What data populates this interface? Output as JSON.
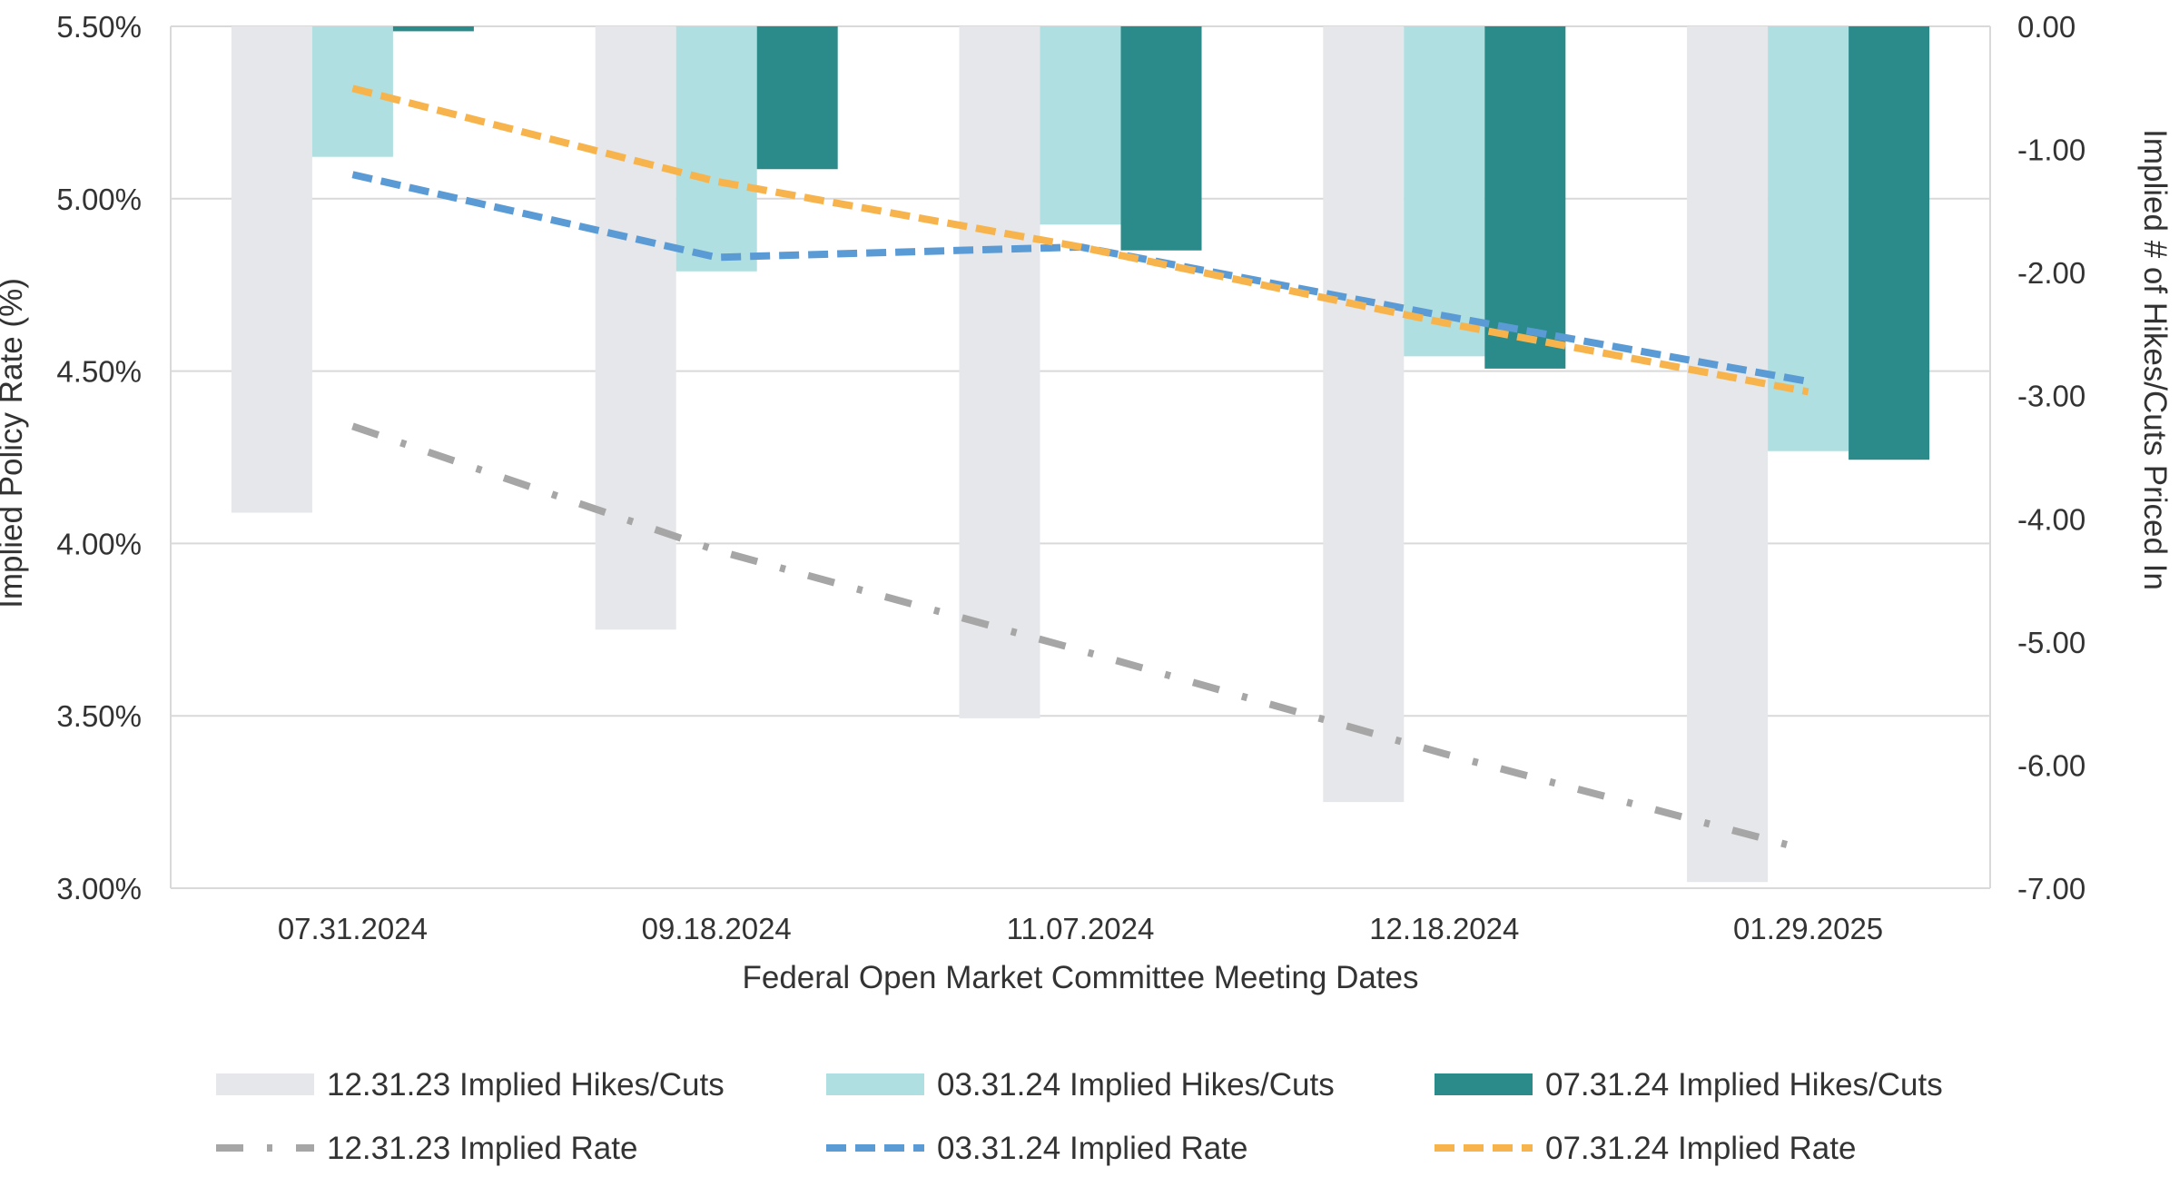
{
  "chart_data": {
    "type": "bar",
    "categories": [
      "07.31.2024",
      "09.18.2024",
      "11.07.2024",
      "12.18.2024",
      "01.29.2025"
    ],
    "xlabel": "Federal Open Market Committee Meeting Dates",
    "ylabel_left": "Implied Policy Rate (%)",
    "ylabel_right": "Implied # of Hikes/Cuts Priced In",
    "ylim_left": [
      3.0,
      5.5
    ],
    "ylim_right": [
      -7.0,
      0.0
    ],
    "left_ticks": [
      "3.00%",
      "3.50%",
      "4.00%",
      "4.50%",
      "5.00%",
      "5.50%"
    ],
    "right_ticks": [
      "0.00",
      "-1.00",
      "-2.00",
      "-3.00",
      "-4.00",
      "-5.00",
      "-6.00",
      "-7.00"
    ],
    "grid": true,
    "legend_position": "bottom",
    "bar_series": [
      {
        "name": "12.31.23 Implied Hikes/Cuts",
        "color": "#e6e7ea",
        "values": [
          -3.95,
          -4.9,
          -5.62,
          -6.3,
          -6.95
        ]
      },
      {
        "name": "03.31.24 Implied Hikes/Cuts",
        "color": "#afdfe0",
        "values": [
          -1.06,
          -1.99,
          -1.61,
          -2.68,
          -3.45
        ]
      },
      {
        "name": "07.31.24 Implied Hikes/Cuts",
        "color": "#2a8b8a",
        "values": [
          -0.04,
          -1.16,
          -1.82,
          -2.78,
          -3.52
        ]
      }
    ],
    "line_series": [
      {
        "name": "12.31.23 Implied Rate",
        "color": "#a6a6a6",
        "style": "dashdot",
        "values": [
          4.34,
          3.98,
          3.69,
          3.39,
          3.11
        ]
      },
      {
        "name": "03.31.24 Implied Rate",
        "color": "#5b9bd5",
        "style": "dashed",
        "values": [
          5.07,
          4.83,
          4.86,
          4.66,
          4.47
        ]
      },
      {
        "name": "07.31.24 Implied Rate",
        "color": "#f7b34c",
        "style": "dashed",
        "values": [
          5.32,
          5.05,
          4.86,
          4.64,
          4.44
        ]
      }
    ]
  }
}
